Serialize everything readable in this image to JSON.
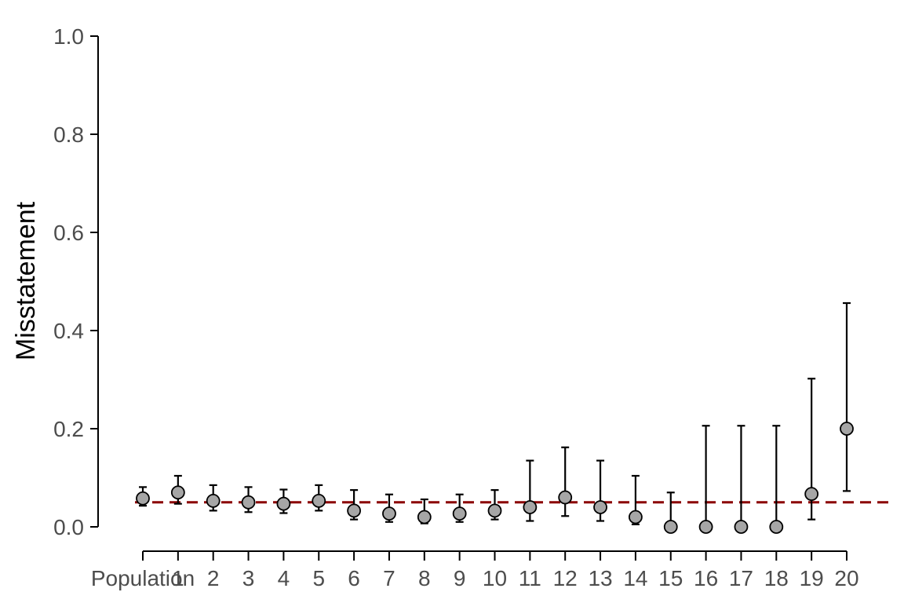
{
  "chart_data": {
    "type": "scatter",
    "title": "",
    "xlabel": "",
    "ylabel": "Misstatement",
    "ylim": [
      0,
      1
    ],
    "yticks": [
      "0.0",
      "0.2",
      "0.4",
      "0.6",
      "0.8",
      "1.0"
    ],
    "ytick_values": [
      0,
      0.2,
      0.4,
      0.6,
      0.8,
      1.0
    ],
    "categories": [
      "Population",
      "1",
      "2",
      "3",
      "4",
      "5",
      "6",
      "7",
      "8",
      "9",
      "10",
      "11",
      "12",
      "13",
      "14",
      "15",
      "16",
      "17",
      "18",
      "19",
      "20"
    ],
    "series": [
      {
        "values": [
          0.058,
          0.07,
          0.053,
          0.05,
          0.047,
          0.053,
          0.033,
          0.027,
          0.02,
          0.027,
          0.033,
          0.04,
          0.06,
          0.04,
          0.02,
          0.0,
          0.0,
          0.0,
          0.0,
          0.067,
          0.2
        ],
        "lower": [
          0.043,
          0.047,
          0.033,
          0.03,
          0.028,
          0.033,
          0.015,
          0.01,
          0.007,
          0.01,
          0.015,
          0.012,
          0.022,
          0.012,
          0.005,
          0.0,
          0.0,
          0.0,
          0.0,
          0.015,
          0.073
        ],
        "upper": [
          0.081,
          0.104,
          0.085,
          0.081,
          0.076,
          0.085,
          0.075,
          0.066,
          0.056,
          0.066,
          0.075,
          0.135,
          0.162,
          0.135,
          0.104,
          0.07,
          0.206,
          0.206,
          0.206,
          0.302,
          0.456
        ]
      }
    ],
    "reference_line": {
      "value": 0.05,
      "style": "dashed",
      "color": "#8b0000"
    },
    "point_fill": "#a6a6a6",
    "point_stroke": "#000000",
    "grid": false,
    "legend": "none"
  }
}
